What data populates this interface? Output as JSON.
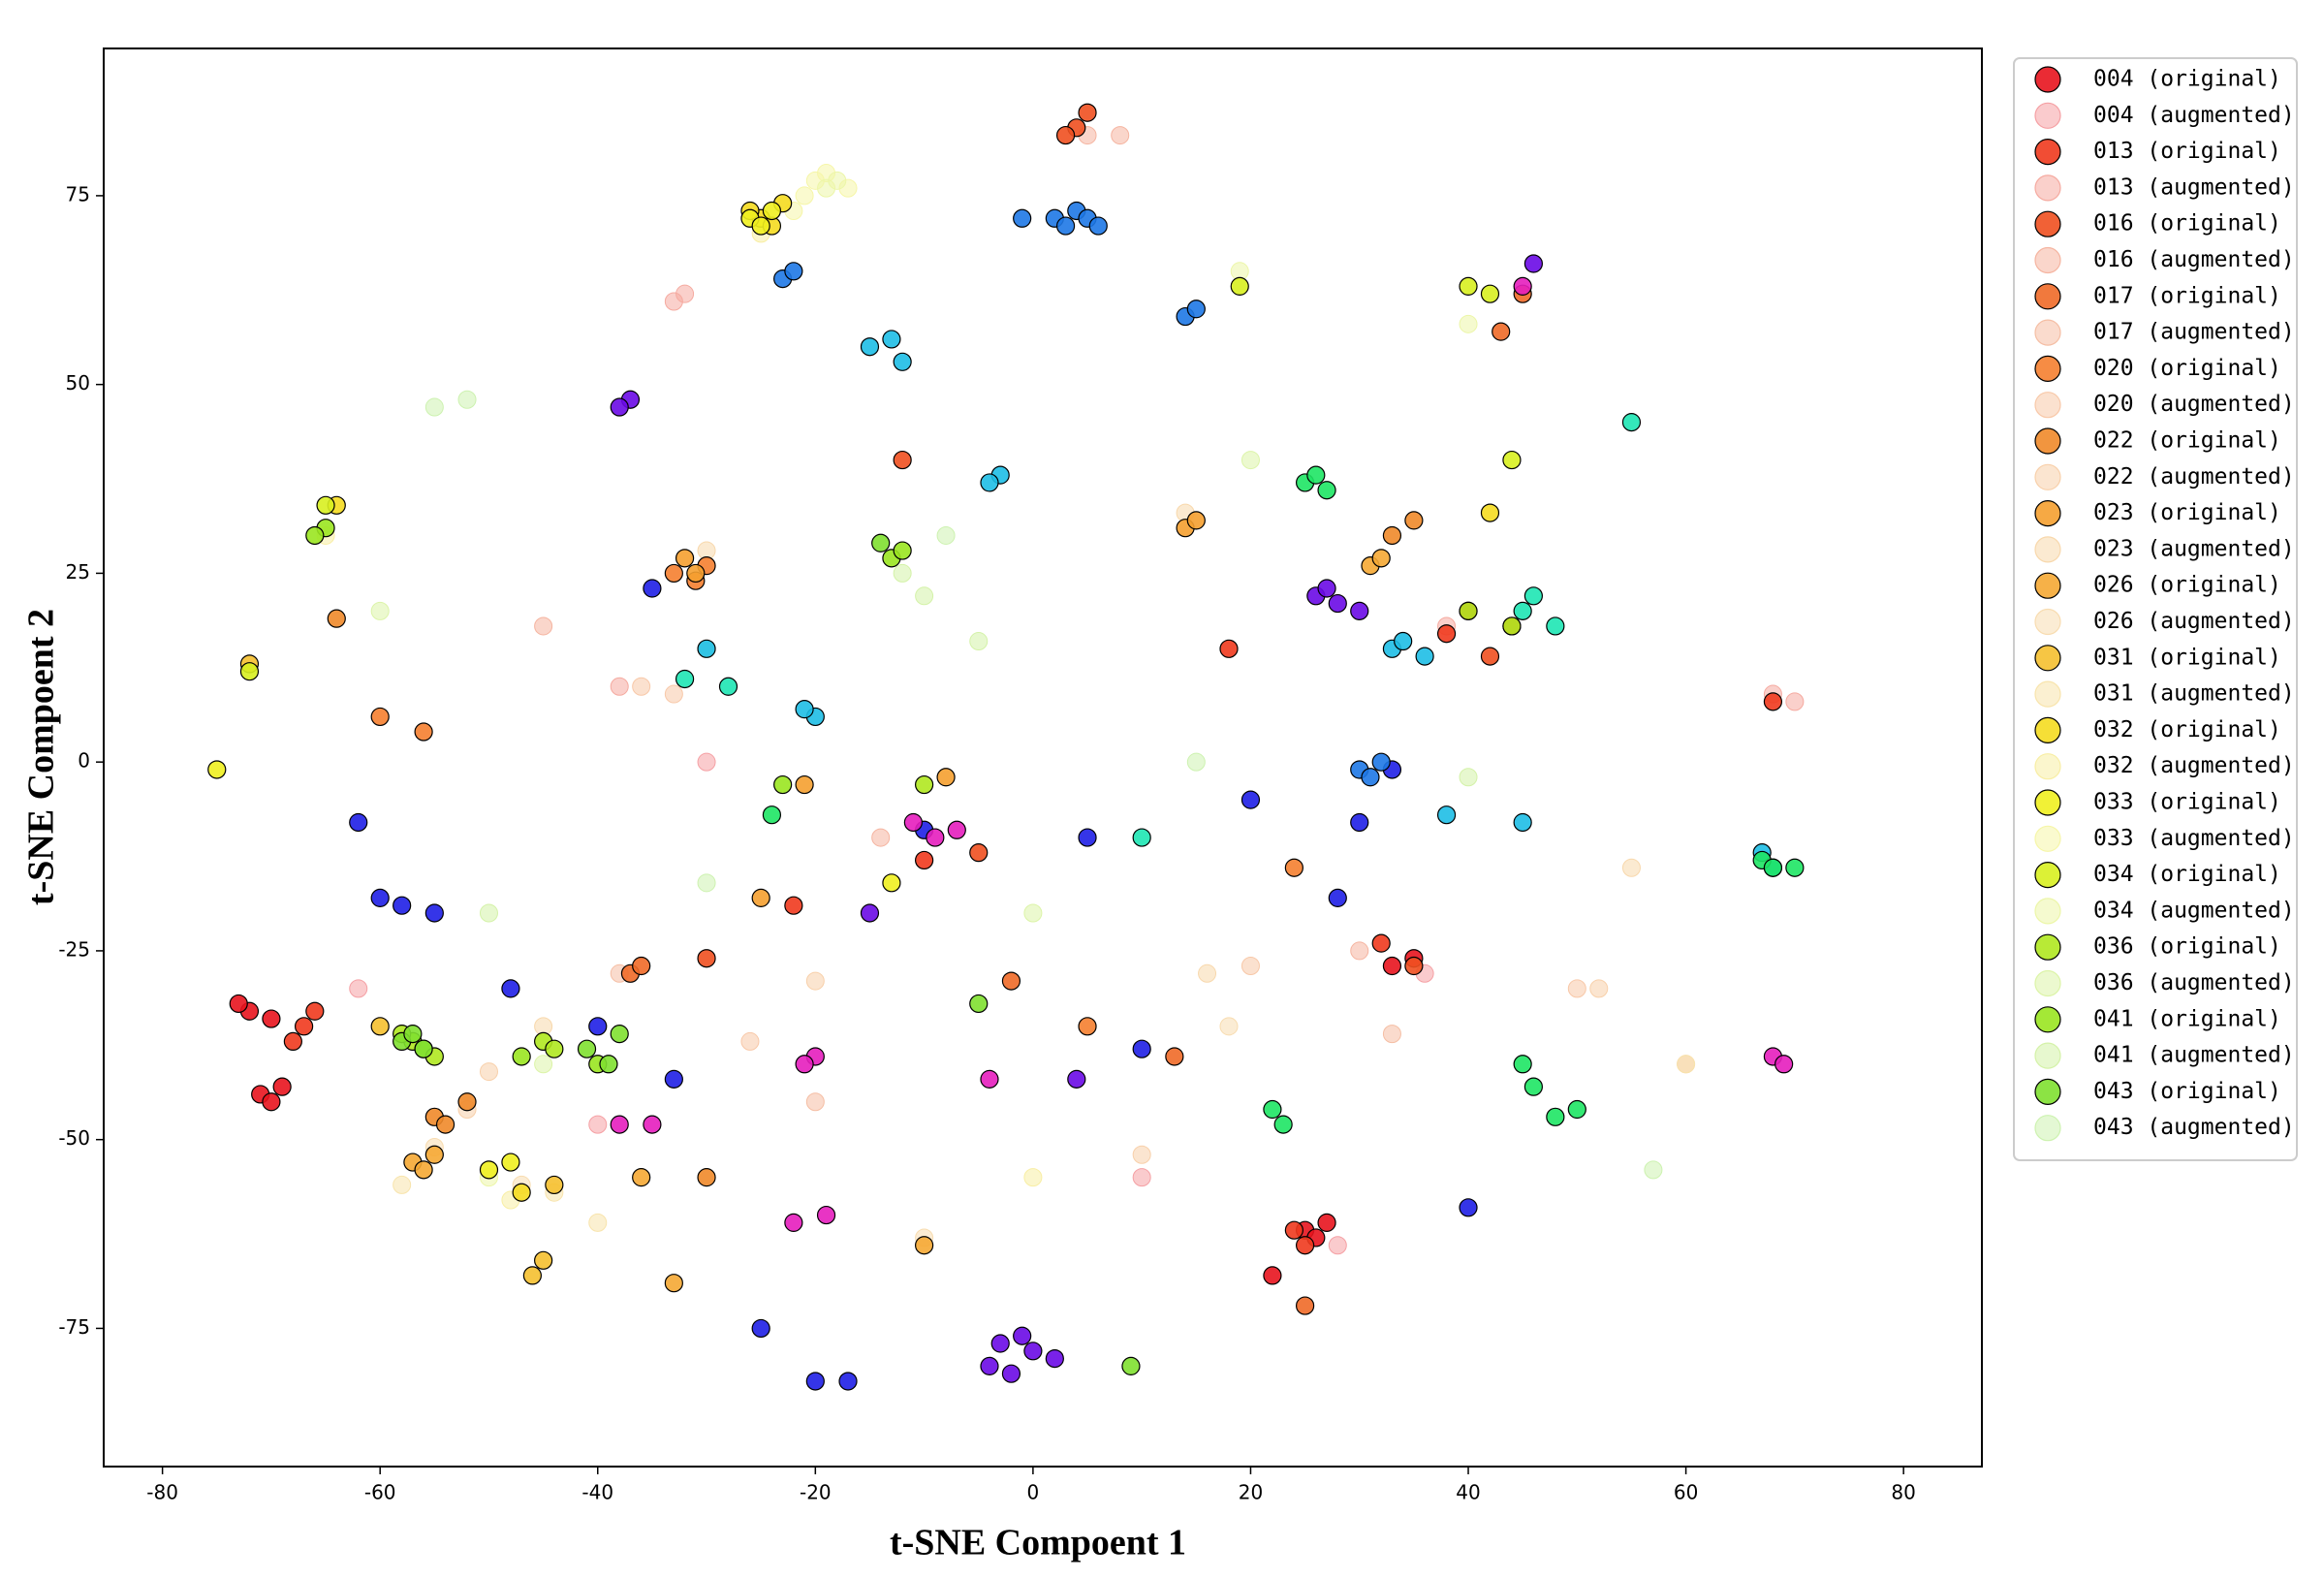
{
  "chart_data": {
    "type": "scatter",
    "xlabel": "t-SNE Compoent 1",
    "ylabel": "t-SNE Compoent 2",
    "xlim": [
      -85.4,
      87.2
    ],
    "ylim": [
      -93.3,
      94.5
    ],
    "xticks": [
      -80,
      -60,
      -40,
      -20,
      0,
      20,
      40,
      60,
      80
    ],
    "yticks": [
      -75,
      -50,
      -25,
      0,
      25,
      50,
      75
    ],
    "legend": "outside-right",
    "series": [
      {
        "name": "004 (original)",
        "color": "#e8141e",
        "x": [
          -71,
          -70,
          -69,
          -72,
          -73,
          -70,
          25,
          26,
          27,
          33,
          35,
          22
        ],
        "y": [
          -44,
          -45,
          -43,
          -33,
          -32,
          -34,
          -62,
          -63,
          -61,
          -27,
          -26,
          -68
        ]
      },
      {
        "name": "004 (augmented)",
        "color": "#f5a0a4",
        "x": [
          -62,
          -30,
          28,
          36,
          -40,
          10
        ],
        "y": [
          -30,
          0,
          -64,
          -28,
          -48,
          -55
        ]
      },
      {
        "name": "013 (original)",
        "color": "#f03a1e",
        "x": [
          -68,
          -67,
          -66,
          24,
          25,
          -22,
          38,
          40,
          68,
          -10,
          18,
          32
        ],
        "y": [
          -37,
          -35,
          -33,
          -62,
          -64,
          -19,
          17,
          20,
          8,
          -13,
          15,
          -24
        ]
      },
      {
        "name": "013 (augmented)",
        "color": "#f5aaa0",
        "x": [
          -33,
          -32,
          68,
          70,
          -38,
          38
        ],
        "y": [
          61,
          62,
          9,
          8,
          10,
          18
        ]
      },
      {
        "name": "016 (original)",
        "color": "#f05020",
        "x": [
          4,
          5,
          3,
          42,
          44,
          -5,
          -30,
          -12,
          35
        ],
        "y": [
          84,
          86,
          83,
          14,
          18,
          -12,
          -26,
          40,
          -27
        ]
      },
      {
        "name": "016 (augmented)",
        "color": "#f5b4a0",
        "x": [
          5,
          8,
          -14,
          -45,
          30
        ],
        "y": [
          83,
          83,
          -10,
          18,
          -25
        ]
      },
      {
        "name": "017 (original)",
        "color": "#f06a28",
        "x": [
          -37,
          -36,
          43,
          45,
          25,
          -2,
          13
        ],
        "y": [
          -28,
          -27,
          57,
          62,
          -72,
          -29,
          -39
        ]
      },
      {
        "name": "017 (augmented)",
        "color": "#f5bea4",
        "x": [
          -38,
          -20,
          33,
          60
        ],
        "y": [
          -28,
          -45,
          -36,
          -40
        ]
      },
      {
        "name": "020 (original)",
        "color": "#f57f30",
        "x": [
          -33,
          -31,
          -30,
          24,
          -56,
          -60,
          5
        ],
        "y": [
          25,
          24,
          26,
          -14,
          4,
          6,
          -35
        ]
      },
      {
        "name": "020 (augmented)",
        "color": "#f8c8a8",
        "x": [
          -36,
          -33,
          20,
          -26,
          50
        ],
        "y": [
          10,
          9,
          -27,
          -37,
          -30
        ]
      },
      {
        "name": "022 (original)",
        "color": "#f08a2a",
        "x": [
          -55,
          -54,
          -52,
          -30,
          33,
          35,
          -64
        ],
        "y": [
          -47,
          -48,
          -45,
          -55,
          30,
          32,
          19
        ]
      },
      {
        "name": "022 (augmented)",
        "color": "#f8d0aa",
        "x": [
          -52,
          -50,
          52,
          -20,
          10
        ],
        "y": [
          -46,
          -41,
          -30,
          -29,
          -52
        ]
      },
      {
        "name": "023 (original)",
        "color": "#f5a030",
        "x": [
          -32,
          -31,
          -21,
          14,
          15,
          -8,
          -25
        ],
        "y": [
          27,
          25,
          -3,
          31,
          32,
          -2,
          -18
        ]
      },
      {
        "name": "023 (augmented)",
        "color": "#f8d8ac",
        "x": [
          -30,
          14,
          16,
          -45,
          55
        ],
        "y": [
          28,
          33,
          -28,
          -35,
          -14
        ]
      },
      {
        "name": "026 (original)",
        "color": "#f5a834",
        "x": [
          -57,
          -56,
          -55,
          -33,
          -10,
          -36,
          31,
          32
        ],
        "y": [
          -53,
          -54,
          -52,
          -69,
          -64,
          -55,
          26,
          27
        ]
      },
      {
        "name": "026 (augmented)",
        "color": "#f8dcb0",
        "x": [
          -55,
          -10,
          -47,
          18
        ],
        "y": [
          -51,
          -63,
          -56,
          -35
        ]
      },
      {
        "name": "031 (original)",
        "color": "#f5c030",
        "x": [
          -45,
          -46,
          -44,
          -60,
          -72
        ],
        "y": [
          -66,
          -68,
          -56,
          -35,
          13
        ]
      },
      {
        "name": "031 (augmented)",
        "color": "#f8e4ac",
        "x": [
          -44,
          -58,
          -40,
          60
        ],
        "y": [
          -57,
          -56,
          -61,
          -40
        ]
      },
      {
        "name": "032 (original)",
        "color": "#f5dc20",
        "x": [
          -25,
          -24,
          -26,
          -23,
          -64,
          42,
          -47
        ],
        "y": [
          72,
          71,
          73,
          74,
          34,
          33,
          -57
        ]
      },
      {
        "name": "032 (augmented)",
        "color": "#f8eea4",
        "x": [
          -25,
          -48,
          -65,
          0
        ],
        "y": [
          70,
          -58,
          30,
          -55
        ]
      },
      {
        "name": "033 (original)",
        "color": "#f0f020",
        "x": [
          -26,
          -24,
          -25,
          -48,
          -50,
          -75,
          -13
        ],
        "y": [
          72,
          73,
          71,
          -53,
          -54,
          -1,
          -16
        ]
      },
      {
        "name": "033 (augmented)",
        "color": "#f6f6a8",
        "x": [
          -20,
          -21,
          -19,
          -17,
          -22
        ],
        "y": [
          77,
          75,
          78,
          76,
          73
        ]
      },
      {
        "name": "034 (original)",
        "color": "#d8f020",
        "x": [
          40,
          42,
          -65,
          19,
          -72,
          44
        ],
        "y": [
          63,
          62,
          34,
          63,
          12,
          40
        ]
      },
      {
        "name": "034 (augmented)",
        "color": "#ecf6a8",
        "x": [
          -19,
          -18,
          -50,
          19,
          40
        ],
        "y": [
          76,
          77,
          -55,
          65,
          58
        ]
      },
      {
        "name": "036 (original)",
        "color": "#b0e820",
        "x": [
          -57,
          -56,
          -58,
          -55,
          -45,
          -44,
          -10,
          40,
          44
        ],
        "y": [
          -37,
          -38,
          -36,
          -39,
          -37,
          -38,
          -3,
          20,
          18
        ]
      },
      {
        "name": "036 (augmented)",
        "color": "#dcf4a8",
        "x": [
          -60,
          -45,
          -30,
          0,
          20
        ],
        "y": [
          20,
          -40,
          15,
          -20,
          40
        ]
      },
      {
        "name": "041 (original)",
        "color": "#9ae620",
        "x": [
          -65,
          -66,
          -13,
          -12,
          -47,
          -40,
          -23
        ],
        "y": [
          31,
          30,
          27,
          28,
          -39,
          -40,
          -3
        ]
      },
      {
        "name": "041 (augmented)",
        "color": "#d4f2a8",
        "x": [
          -12,
          -10,
          -50,
          40,
          -5
        ],
        "y": [
          25,
          22,
          -20,
          -2,
          16
        ]
      },
      {
        "name": "043 (original)",
        "color": "#80e030",
        "x": [
          -58,
          -57,
          -56,
          -38,
          -39,
          -41,
          -14,
          -5,
          9
        ],
        "y": [
          -37,
          -36,
          -38,
          -36,
          -40,
          -38,
          29,
          -32,
          -80
        ]
      },
      {
        "name": "043 (augmented)",
        "color": "#cdf2b0",
        "x": [
          -55,
          -52,
          -30,
          -8,
          57,
          15
        ],
        "y": [
          47,
          48,
          -16,
          30,
          -54,
          0
        ]
      }
    ],
    "other_series": [
      {
        "color": "#1f1fe6",
        "x": [
          -60,
          -58,
          -55,
          -62,
          -40,
          -25,
          -20,
          -10,
          5,
          20,
          30,
          33,
          40,
          -35,
          -17,
          10,
          28,
          -48,
          -33
        ],
        "y": [
          -18,
          -19,
          -20,
          -8,
          -35,
          -75,
          -82,
          -9,
          -10,
          -5,
          -8,
          -1,
          -59,
          23,
          -82,
          -38,
          -18,
          -30,
          -42
        ]
      },
      {
        "color": "#6a0ae6",
        "x": [
          -4,
          -2,
          0,
          -3,
          -1,
          2,
          -37,
          -38,
          26,
          27,
          28,
          30,
          46,
          4,
          -15
        ],
        "y": [
          -80,
          -81,
          -78,
          -77,
          -76,
          -79,
          48,
          47,
          22,
          23,
          21,
          20,
          66,
          -42,
          -20
        ]
      },
      {
        "color": "#1ebee6",
        "x": [
          -15,
          -13,
          -12,
          -3,
          -4,
          -20,
          -21,
          33,
          34,
          36,
          38,
          67,
          68,
          -30,
          45
        ],
        "y": [
          55,
          56,
          53,
          38,
          37,
          6,
          7,
          15,
          16,
          14,
          -7,
          -12,
          -14,
          15,
          -8
        ]
      },
      {
        "color": "#1e78e6",
        "x": [
          2,
          3,
          4,
          5,
          6,
          -1,
          -23,
          -22,
          14,
          15,
          30,
          31,
          32
        ],
        "y": [
          72,
          71,
          73,
          72,
          71,
          72,
          64,
          65,
          59,
          60,
          -1,
          -2,
          0
        ]
      },
      {
        "color": "#1ee664",
        "x": [
          25,
          26,
          27,
          45,
          46,
          48,
          50,
          22,
          23,
          -24,
          67,
          68,
          70
        ],
        "y": [
          37,
          38,
          36,
          -40,
          -43,
          -47,
          -46,
          -46,
          -48,
          -7,
          -13,
          -14,
          -14
        ]
      },
      {
        "color": "#e61ebe",
        "x": [
          -7,
          -9,
          -11,
          -20,
          -21,
          -19,
          -38,
          -35,
          -4,
          68,
          69,
          45,
          -22
        ],
        "y": [
          -9,
          -10,
          -8,
          -39,
          -40,
          -60,
          -48,
          -48,
          -42,
          -39,
          -40,
          63,
          -61
        ]
      },
      {
        "color": "#1ee6b4",
        "x": [
          45,
          46,
          48,
          -28,
          -32,
          10,
          55
        ],
        "y": [
          20,
          22,
          18,
          10,
          11,
          -10,
          45
        ]
      }
    ]
  }
}
